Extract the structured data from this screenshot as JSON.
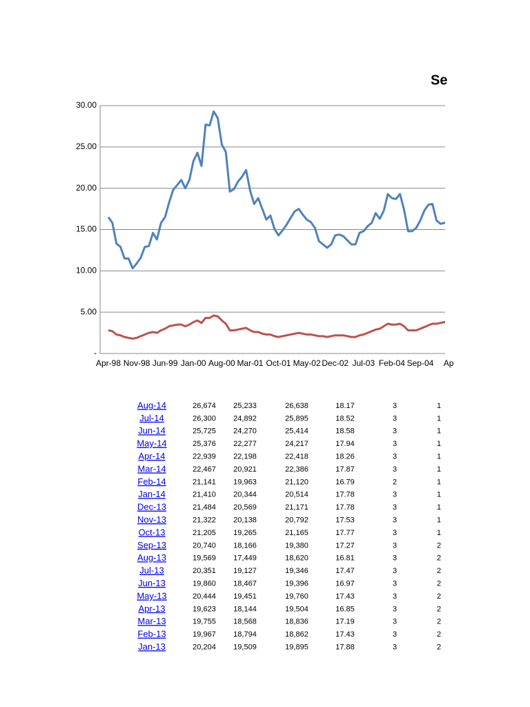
{
  "chart_data": {
    "type": "line",
    "title": "Se",
    "categories": [
      "Apr-98",
      null,
      null,
      null,
      null,
      null,
      null,
      "Nov-98",
      null,
      null,
      null,
      null,
      null,
      null,
      "Jun-99",
      null,
      null,
      null,
      null,
      null,
      null,
      "Jan-00",
      null,
      null,
      null,
      null,
      null,
      null,
      "Aug-00",
      null,
      null,
      null,
      null,
      null,
      null,
      "Mar-01",
      null,
      null,
      null,
      null,
      null,
      null,
      "Oct-01",
      null,
      null,
      null,
      null,
      null,
      null,
      "May-02",
      null,
      null,
      null,
      null,
      null,
      null,
      "Dec-02",
      null,
      null,
      null,
      null,
      null,
      null,
      "Jul-03",
      null,
      null,
      null,
      null,
      null,
      null,
      "Feb-04",
      null,
      null,
      null,
      null,
      null,
      null,
      "Sep-04",
      null,
      null,
      null,
      null,
      null,
      null,
      "Ap"
    ],
    "series": [
      {
        "color": "#4f81bd",
        "values": [
          16.5,
          15.8,
          13.3,
          12.9,
          11.5,
          11.5,
          10.3,
          10.9,
          11.6,
          12.9,
          13.0,
          14.6,
          13.8,
          15.8,
          16.5,
          18.3,
          19.8,
          20.4,
          21.0,
          20.0,
          21.0,
          23.3,
          24.3,
          22.7,
          27.7,
          27.6,
          29.3,
          28.5,
          25.3,
          24.4,
          19.6,
          19.9,
          20.8,
          21.4,
          22.2,
          19.7,
          18.1,
          18.8,
          17.5,
          16.2,
          16.7,
          15.1,
          14.3,
          14.9,
          15.6,
          16.4,
          17.2,
          17.5,
          16.8,
          16.2,
          15.9,
          15.2,
          13.6,
          13.2,
          12.8,
          13.2,
          14.3,
          14.4,
          14.2,
          13.7,
          13.2,
          13.2,
          14.6,
          14.8,
          15.4,
          15.8,
          17.0,
          16.3,
          17.3,
          19.3,
          18.8,
          18.7,
          19.3,
          17.4,
          14.8,
          14.8,
          15.2,
          16.1,
          17.3,
          18.0,
          18.1,
          16.1,
          15.7,
          15.8,
          16.0
        ]
      },
      {
        "color": "#c0504d",
        "values": [
          2.8,
          2.7,
          2.3,
          2.2,
          2.0,
          1.9,
          1.8,
          1.9,
          2.1,
          2.3,
          2.5,
          2.6,
          2.5,
          2.8,
          3.0,
          3.3,
          3.4,
          3.5,
          3.5,
          3.3,
          3.5,
          3.8,
          4.0,
          3.7,
          4.3,
          4.3,
          4.6,
          4.5,
          4.0,
          3.6,
          2.8,
          2.8,
          2.9,
          3.0,
          3.1,
          2.8,
          2.6,
          2.6,
          2.4,
          2.3,
          2.3,
          2.1,
          2.0,
          2.1,
          2.2,
          2.3,
          2.4,
          2.5,
          2.4,
          2.3,
          2.3,
          2.2,
          2.1,
          2.1,
          2.0,
          2.1,
          2.2,
          2.2,
          2.2,
          2.1,
          2.0,
          2.0,
          2.2,
          2.3,
          2.5,
          2.7,
          2.9,
          3.0,
          3.3,
          3.6,
          3.5,
          3.5,
          3.6,
          3.3,
          2.8,
          2.8,
          2.8,
          3.0,
          3.2,
          3.4,
          3.6,
          3.6,
          3.7,
          3.8,
          3.8
        ]
      }
    ],
    "ylim": [
      0,
      30
    ],
    "yticks": [
      {
        "value": 0,
        "label": "-"
      },
      {
        "value": 5,
        "label": "5.00"
      },
      {
        "value": 10,
        "label": "10.00"
      },
      {
        "value": 15,
        "label": "15.00"
      },
      {
        "value": 20,
        "label": "20.00"
      },
      {
        "value": 25,
        "label": "25.00"
      },
      {
        "value": 30,
        "label": "30.00"
      }
    ],
    "grid": true
  },
  "table": {
    "rows": [
      [
        "Aug-14",
        "26,674",
        "25,233",
        "26,638",
        "18.17",
        "3",
        "1"
      ],
      [
        "Jul-14",
        "26,300",
        "24,892",
        "25,895",
        "18.52",
        "3",
        "1"
      ],
      [
        "Jun-14",
        "25,725",
        "24,270",
        "25,414",
        "18.58",
        "3",
        "1"
      ],
      [
        "May-14",
        "25,376",
        "22,277",
        "24,217",
        "17.94",
        "3",
        "1"
      ],
      [
        "Apr-14",
        "22,939",
        "22,198",
        "22,418",
        "18.26",
        "3",
        "1"
      ],
      [
        "Mar-14",
        "22,467",
        "20,921",
        "22,386",
        "17.87",
        "3",
        "1"
      ],
      [
        "Feb-14",
        "21,141",
        "19,963",
        "21,120",
        "16.79",
        "2",
        "1"
      ],
      [
        "Jan-14",
        "21,410",
        "20,344",
        "20,514",
        "17.78",
        "3",
        "1"
      ],
      [
        "Dec-13",
        "21,484",
        "20,569",
        "21,171",
        "17.78",
        "3",
        "1"
      ],
      [
        "Nov-13",
        "21,322",
        "20,138",
        "20,792",
        "17.53",
        "3",
        "1"
      ],
      [
        "Oct-13",
        "21,205",
        "19,265",
        "21,165",
        "17.77",
        "3",
        "1"
      ],
      [
        "Sep-13",
        "20,740",
        "18,166",
        "19,380",
        "17.27",
        "3",
        "2"
      ],
      [
        "Aug-13",
        "19,569",
        "17,449",
        "18,620",
        "16.81",
        "3",
        "2"
      ],
      [
        "Jul-13",
        "20,351",
        "19,127",
        "19,346",
        "17.47",
        "3",
        "2"
      ],
      [
        "Jun-13",
        "19,860",
        "18,467",
        "19,396",
        "16.97",
        "3",
        "2"
      ],
      [
        "May-13",
        "20,444",
        "19,451",
        "19,760",
        "17.43",
        "3",
        "2"
      ],
      [
        "Apr-13",
        "19,623",
        "18,144",
        "19,504",
        "16.85",
        "3",
        "2"
      ],
      [
        "Mar-13",
        "19,755",
        "18,568",
        "18,836",
        "17.19",
        "3",
        "2"
      ],
      [
        "Feb-13",
        "19,967",
        "18,794",
        "18,862",
        "17.43",
        "3",
        "2"
      ],
      [
        "Jan-13",
        "20,204",
        "19,509",
        "19,895",
        "17.88",
        "3",
        "2"
      ]
    ]
  }
}
